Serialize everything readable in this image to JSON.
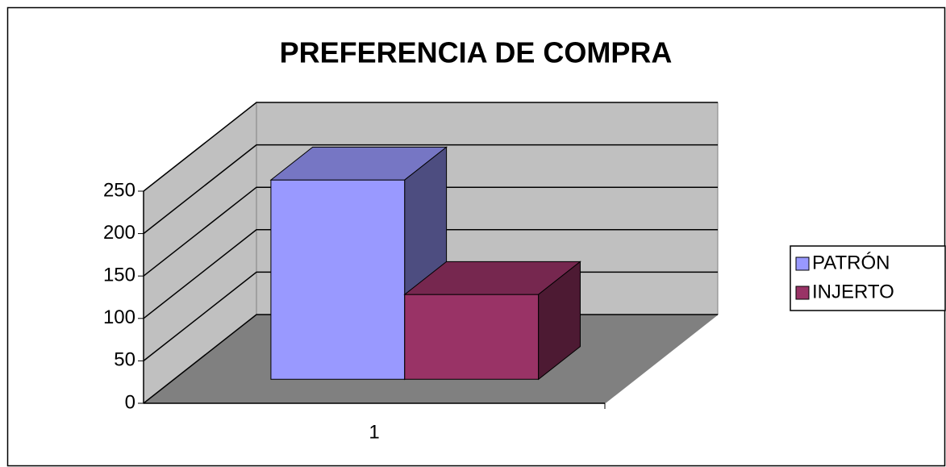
{
  "chart_data": {
    "type": "bar",
    "title": "PREFERENCIA DE COMPRA",
    "categories": [
      "1"
    ],
    "series": [
      {
        "name": "PATRÓN",
        "color": "#9999ff",
        "values": [
          235
        ]
      },
      {
        "name": "INJERTO",
        "color": "#993366",
        "values": [
          100
        ]
      }
    ],
    "ylim": [
      0,
      250
    ],
    "yticks": [
      0,
      50,
      100,
      150,
      200,
      250
    ],
    "grid": true,
    "legend": "right"
  }
}
